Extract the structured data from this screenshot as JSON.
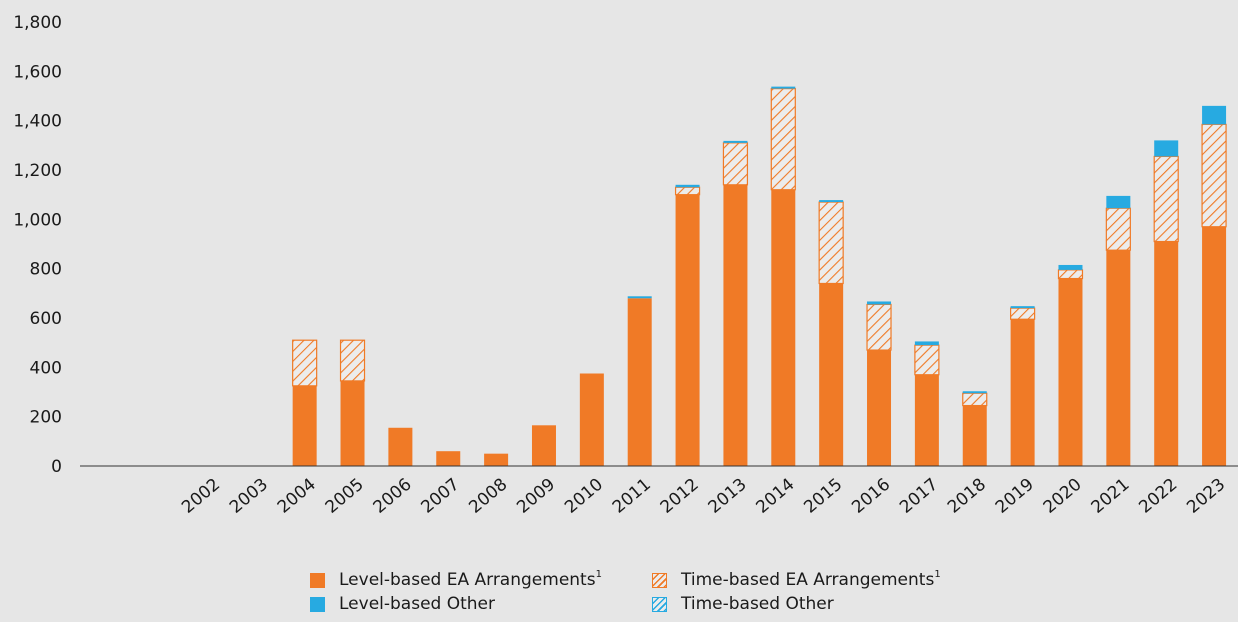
{
  "chart_data": {
    "type": "bar",
    "stacked": true,
    "title": "",
    "xlabel": "",
    "ylabel": "",
    "ylim": [
      0,
      1800
    ],
    "yticks": [
      "0",
      "200",
      "400",
      "600",
      "800",
      "1,000",
      "1,200",
      "1,400",
      "1,600",
      "1,800"
    ],
    "ytick_values": [
      0,
      200,
      400,
      600,
      800,
      1000,
      1200,
      1400,
      1600,
      1800
    ],
    "grid": false,
    "legend_position": "bottom",
    "categories": [
      "2002",
      "2003",
      "2004",
      "2005",
      "2006",
      "2007",
      "2008",
      "2009",
      "2010",
      "2011",
      "2012",
      "2013",
      "2014",
      "2015",
      "2016",
      "2017",
      "2018",
      "2019",
      "2020",
      "2021",
      "2022",
      "2023"
    ],
    "series": [
      {
        "name": "Level-based EA Arrangements",
        "superscript": "1",
        "color": "#f07a26",
        "pattern": "solid",
        "values": [
          0,
          0,
          325,
          345,
          155,
          60,
          50,
          165,
          375,
          680,
          1100,
          1140,
          1120,
          740,
          470,
          370,
          245,
          595,
          760,
          875,
          910,
          970
        ]
      },
      {
        "name": "Time-based EA Arrangements",
        "superscript": "1",
        "color": "#f07a26",
        "pattern": "hatched",
        "values": [
          0,
          0,
          185,
          165,
          0,
          0,
          0,
          0,
          0,
          0,
          30,
          170,
          410,
          330,
          185,
          120,
          50,
          45,
          35,
          170,
          345,
          415
        ]
      },
      {
        "name": "Level-based Other",
        "color": "#27aae1",
        "pattern": "solid",
        "values": [
          0,
          0,
          0,
          0,
          0,
          0,
          0,
          0,
          0,
          8,
          10,
          8,
          8,
          8,
          12,
          15,
          8,
          8,
          20,
          50,
          65,
          75
        ]
      },
      {
        "name": "Time-based Other",
        "color": "#27aae1",
        "pattern": "hatched",
        "values": [
          0,
          0,
          0,
          0,
          0,
          0,
          0,
          0,
          0,
          0,
          0,
          0,
          0,
          0,
          0,
          0,
          0,
          0,
          0,
          0,
          0,
          0
        ]
      }
    ]
  }
}
